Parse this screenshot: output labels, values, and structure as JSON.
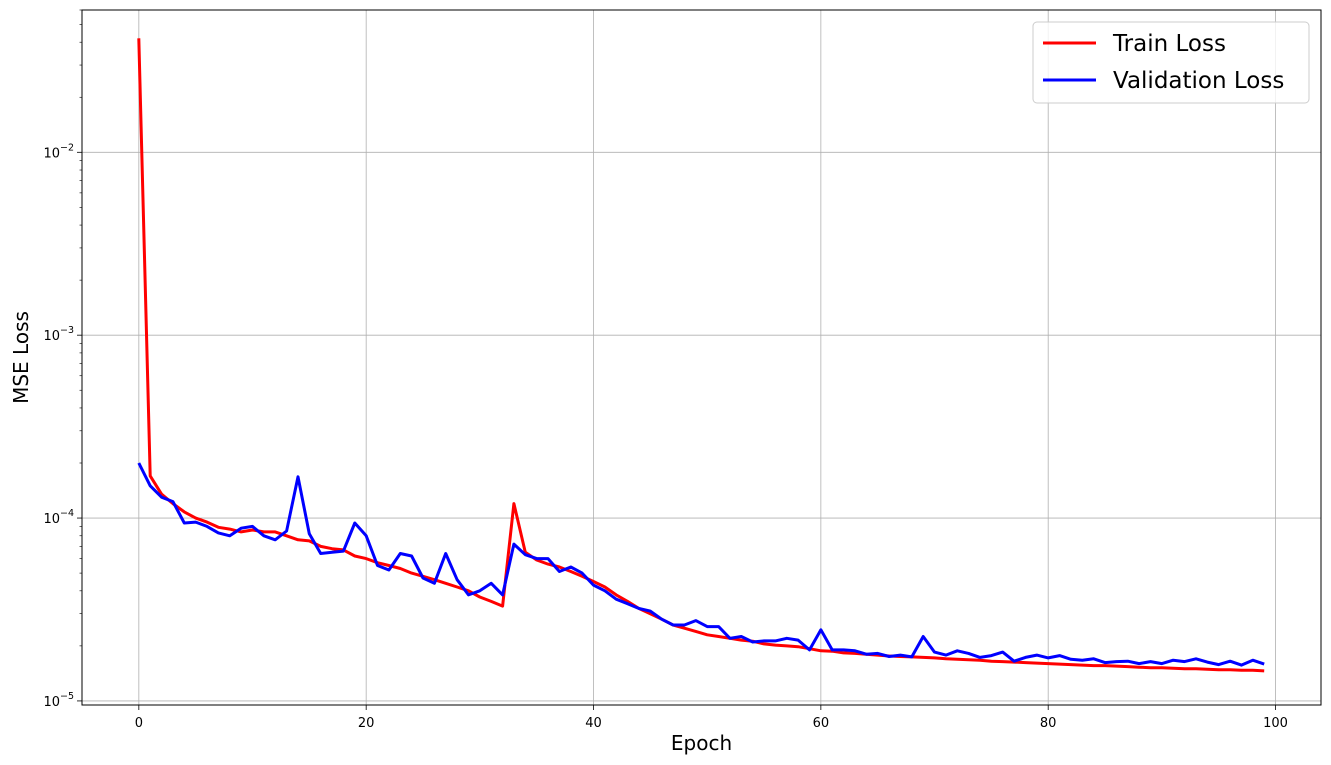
{
  "chart_data": {
    "type": "line",
    "title": "",
    "xlabel": "Epoch",
    "ylabel": "MSE Loss",
    "xlim": [
      -5,
      104
    ],
    "ylim": [
      9.5e-06,
      0.06
    ],
    "yscale": "log",
    "grid": true,
    "legend_position": "top-right",
    "x_ticks": [
      0,
      20,
      40,
      60,
      80,
      100
    ],
    "x_tick_labels": [
      "0",
      "20",
      "40",
      "60",
      "80",
      "100"
    ],
    "y_ticks": [
      1e-05,
      0.0001,
      0.001,
      0.01
    ],
    "y_tick_labels": [
      {
        "base": "10",
        "exp": "−5"
      },
      {
        "base": "10",
        "exp": "−4"
      },
      {
        "base": "10",
        "exp": "−3"
      },
      {
        "base": "10",
        "exp": "−2"
      }
    ],
    "x": [
      0,
      1,
      2,
      3,
      4,
      5,
      6,
      7,
      8,
      9,
      10,
      11,
      12,
      13,
      14,
      15,
      16,
      17,
      18,
      19,
      20,
      21,
      22,
      23,
      24,
      25,
      26,
      27,
      28,
      29,
      30,
      31,
      32,
      33,
      34,
      35,
      36,
      37,
      38,
      39,
      40,
      41,
      42,
      43,
      44,
      45,
      46,
      47,
      48,
      49,
      50,
      51,
      52,
      53,
      54,
      55,
      56,
      57,
      58,
      59,
      60,
      61,
      62,
      63,
      64,
      65,
      66,
      67,
      68,
      69,
      70,
      71,
      72,
      73,
      74,
      75,
      76,
      77,
      78,
      79,
      80,
      81,
      82,
      83,
      84,
      85,
      86,
      87,
      88,
      89,
      90,
      91,
      92,
      93,
      94,
      95,
      96,
      97,
      98,
      99
    ],
    "series": [
      {
        "name": "Train Loss",
        "color": "#ff0000",
        "values": [
          0.042,
          0.00017,
          0.000135,
          0.00012,
          0.000108,
          0.0001,
          9.5e-05,
          8.9e-05,
          8.7e-05,
          8.4e-05,
          8.6e-05,
          8.4e-05,
          8.4e-05,
          8e-05,
          7.6e-05,
          7.5e-05,
          7e-05,
          6.8e-05,
          6.7e-05,
          6.2e-05,
          6e-05,
          5.7e-05,
          5.5e-05,
          5.3e-05,
          5e-05,
          4.8e-05,
          4.6e-05,
          4.4e-05,
          4.2e-05,
          4e-05,
          3.7e-05,
          3.5e-05,
          3.3e-05,
          0.00012,
          6.5e-05,
          5.9e-05,
          5.6e-05,
          5.4e-05,
          5.1e-05,
          4.8e-05,
          4.5e-05,
          4.2e-05,
          3.8e-05,
          3.5e-05,
          3.2e-05,
          3e-05,
          2.8e-05,
          2.6e-05,
          2.5e-05,
          2.4e-05,
          2.3e-05,
          2.25e-05,
          2.2e-05,
          2.15e-05,
          2.12e-05,
          2.05e-05,
          2.02e-05,
          2e-05,
          1.98e-05,
          1.93e-05,
          1.88e-05,
          1.87e-05,
          1.83e-05,
          1.82e-05,
          1.8e-05,
          1.78e-05,
          1.76e-05,
          1.75e-05,
          1.74e-05,
          1.73e-05,
          1.72e-05,
          1.7e-05,
          1.69e-05,
          1.68e-05,
          1.67e-05,
          1.65e-05,
          1.64e-05,
          1.63e-05,
          1.62e-05,
          1.61e-05,
          1.6e-05,
          1.59e-05,
          1.58e-05,
          1.57e-05,
          1.56e-05,
          1.56e-05,
          1.55e-05,
          1.54e-05,
          1.53e-05,
          1.52e-05,
          1.52e-05,
          1.51e-05,
          1.5e-05,
          1.5e-05,
          1.49e-05,
          1.48e-05,
          1.48e-05,
          1.47e-05,
          1.47e-05,
          1.46e-05
        ]
      },
      {
        "name": "Validation Loss",
        "color": "#0000ff",
        "values": [
          0.0002,
          0.00015,
          0.00013,
          0.000123,
          9.4e-05,
          9.5e-05,
          9e-05,
          8.3e-05,
          8e-05,
          8.8e-05,
          9e-05,
          8e-05,
          7.6e-05,
          8.5e-05,
          0.000168,
          8.2e-05,
          6.4e-05,
          6.5e-05,
          6.6e-05,
          9.4e-05,
          8e-05,
          5.5e-05,
          5.2e-05,
          6.4e-05,
          6.2e-05,
          4.7e-05,
          4.4e-05,
          6.4e-05,
          4.6e-05,
          3.8e-05,
          4e-05,
          4.4e-05,
          3.8e-05,
          7.2e-05,
          6.3e-05,
          6e-05,
          6e-05,
          5.1e-05,
          5.4e-05,
          5e-05,
          4.3e-05,
          4e-05,
          3.6e-05,
          3.4e-05,
          3.2e-05,
          3.1e-05,
          2.8e-05,
          2.6e-05,
          2.6e-05,
          2.75e-05,
          2.55e-05,
          2.55e-05,
          2.2e-05,
          2.25e-05,
          2.1e-05,
          2.13e-05,
          2.13e-05,
          2.2e-05,
          2.15e-05,
          1.9e-05,
          2.45e-05,
          1.9e-05,
          1.9e-05,
          1.88e-05,
          1.8e-05,
          1.82e-05,
          1.75e-05,
          1.78e-05,
          1.74e-05,
          2.25e-05,
          1.85e-05,
          1.78e-05,
          1.88e-05,
          1.82e-05,
          1.73e-05,
          1.77e-05,
          1.85e-05,
          1.65e-05,
          1.73e-05,
          1.78e-05,
          1.72e-05,
          1.77e-05,
          1.69e-05,
          1.67e-05,
          1.7e-05,
          1.62e-05,
          1.64e-05,
          1.65e-05,
          1.6e-05,
          1.64e-05,
          1.6e-05,
          1.67e-05,
          1.64e-05,
          1.7e-05,
          1.63e-05,
          1.58e-05,
          1.65e-05,
          1.57e-05,
          1.67e-05,
          1.59e-05
        ]
      }
    ]
  }
}
